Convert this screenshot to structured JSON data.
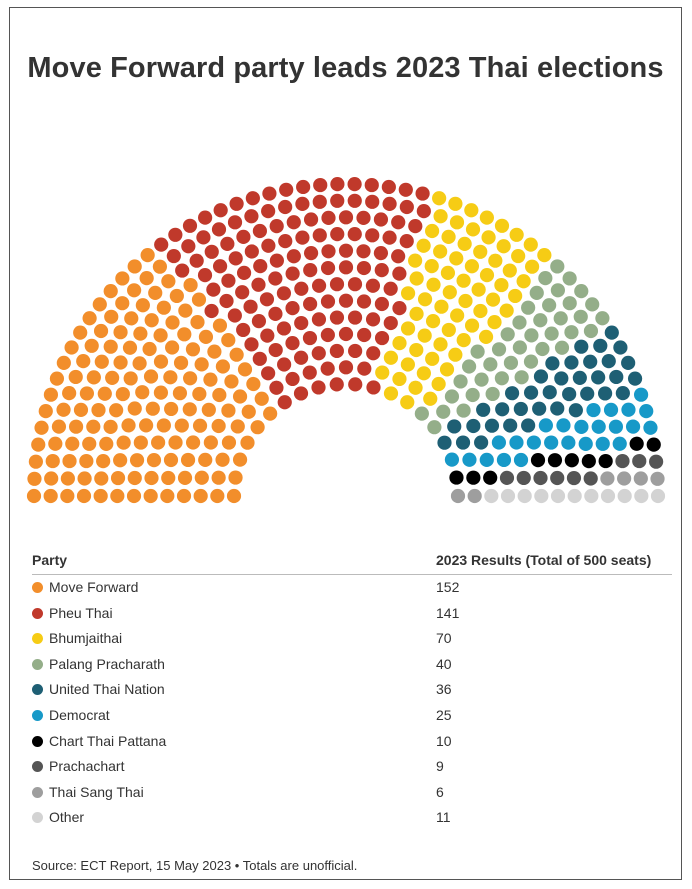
{
  "chart_data": {
    "type": "parliament",
    "title": "Move Forward party leads 2023 Thai elections",
    "total_seats": 500,
    "parties": [
      {
        "name": "Move Forward",
        "seats": 152,
        "color": "#F28E2B"
      },
      {
        "name": "Pheu Thai",
        "seats": 141,
        "color": "#C0392B"
      },
      {
        "name": "Bhumjaithai",
        "seats": 70,
        "color": "#F6CC15"
      },
      {
        "name": "Palang Pracharath",
        "seats": 40,
        "color": "#94AE89"
      },
      {
        "name": "United Thai Nation",
        "seats": 36,
        "color": "#1E5F74"
      },
      {
        "name": "Democrat",
        "seats": 25,
        "color": "#1799C8"
      },
      {
        "name": "Chart Thai Pattana",
        "seats": 10,
        "color": "#000000"
      },
      {
        "name": "Prachachart",
        "seats": 9,
        "color": "#555555"
      },
      {
        "name": "Thai Sang Thai",
        "seats": 6,
        "color": "#9E9E9E"
      },
      {
        "name": "Other",
        "seats": 11,
        "color": "#D3D3D3"
      }
    ]
  },
  "table": {
    "header_party": "Party",
    "header_results": "2023 Results (Total of 500 seats)"
  },
  "source": "Source: ECT Report, 15 May 2023 • Totals are unofficial."
}
